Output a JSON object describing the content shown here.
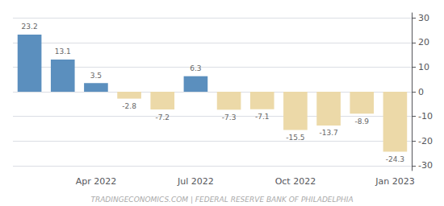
{
  "chart_data": {
    "type": "bar",
    "categories": [
      null,
      null,
      "Apr 2022",
      null,
      null,
      "Jul 2022",
      null,
      null,
      "Oct 2022",
      null,
      null,
      "Jan 2023"
    ],
    "values": [
      23.2,
      13.1,
      3.5,
      -2.8,
      -7.2,
      6.3,
      -7.3,
      -7.1,
      -15.5,
      -13.7,
      -8.9,
      -24.3
    ],
    "colors": [
      "#5b8fbe",
      "#5b8fbe",
      "#5b8fbe",
      "#ecd9a8",
      "#ecd9a8",
      "#5b8fbe",
      "#ecd9a8",
      "#ecd9a8",
      "#ecd9a8",
      "#ecd9a8",
      "#ecd9a8",
      "#ecd9a8"
    ],
    "ylim": [
      -32,
      32
    ],
    "yticks": [
      -30,
      -20,
      -10,
      0,
      10,
      20,
      30
    ],
    "grid": true,
    "data_labels": true,
    "annotations": [
      "TRADINGECONOMICS.COM | FEDERAL RESERVE BANK OF PHILADELPHIA"
    ]
  }
}
